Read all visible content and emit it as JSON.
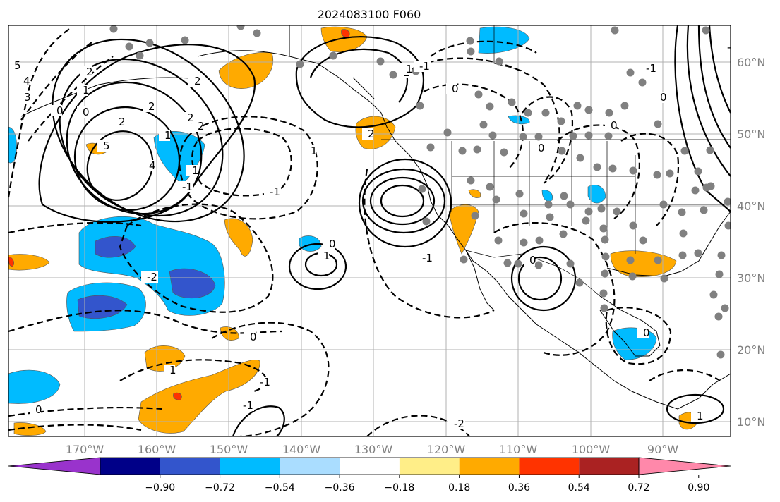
{
  "title": "2024083100 F060",
  "colors": {
    "purple": "#9933cc",
    "navy": "#000088",
    "royal": "#3355cc",
    "sky": "#00bbff",
    "lightblue": "#aaddff",
    "white": "#ffffff",
    "yellow": "#ffee88",
    "orange": "#ffaa00",
    "redorange": "#ff3300",
    "darkred": "#aa2222",
    "pink": "#ff88aa",
    "station": "#808080",
    "grid": "#b0b0b0"
  },
  "map": {
    "lon_labels": [
      "170°W",
      "160°W",
      "150°W",
      "140°W",
      "130°W",
      "120°W",
      "110°W",
      "100°W",
      "90°W"
    ],
    "lat_labels": [
      "60°N",
      "50°N",
      "40°N",
      "30°N",
      "20°N",
      "10°N"
    ],
    "contour_labels": [
      "5",
      "4",
      "3",
      "2",
      "1",
      "0",
      "0",
      "5",
      "4",
      "2",
      "1",
      "2",
      "2",
      "1",
      "2",
      "2",
      "1",
      "-1",
      "-2",
      "0",
      "1",
      "2",
      "2",
      "1",
      "-1",
      "0",
      "0",
      "-1",
      "-1",
      "0",
      "1",
      "0",
      "-1",
      "-2",
      "0",
      "1",
      "0",
      "0",
      "0",
      "-1",
      "-1",
      "-1"
    ]
  },
  "colorbar": {
    "ticks": [
      "−0.90",
      "−0.72",
      "−0.54",
      "−0.36",
      "−0.18",
      "0.18",
      "0.36",
      "0.54",
      "0.72",
      "0.90"
    ],
    "bins": [
      "purple",
      "navy",
      "royal",
      "sky",
      "lightblue",
      "white",
      "yellow",
      "orange",
      "redorange",
      "darkred",
      "pink"
    ]
  }
}
